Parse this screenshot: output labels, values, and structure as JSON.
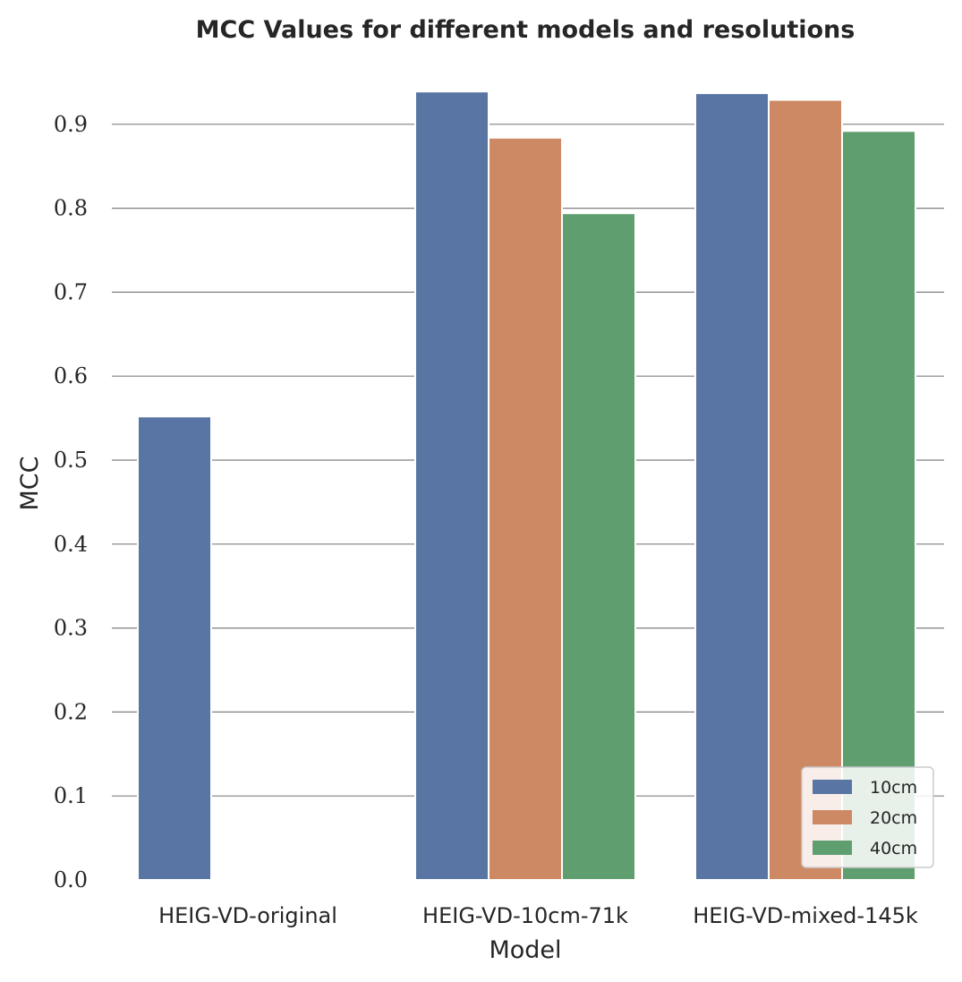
{
  "chart_data": {
    "type": "bar",
    "title": "MCC Values for different models and resolutions",
    "xlabel": "Model",
    "ylabel": "MCC",
    "categories": [
      "HEIG-VD-original",
      "HEIG-VD-10cm-71k",
      "HEIG-VD-mixed-145k"
    ],
    "series": [
      {
        "name": "10cm",
        "color": "#5975a4",
        "values": [
          0.552,
          0.939,
          0.937
        ]
      },
      {
        "name": "20cm",
        "color": "#cc8963",
        "values": [
          null,
          0.884,
          0.929
        ]
      },
      {
        "name": "40cm",
        "color": "#5f9e6e",
        "values": [
          null,
          0.794,
          0.892
        ]
      }
    ],
    "ylim": [
      0,
      0.95
    ],
    "yticks": [
      "0.0",
      "0.1",
      "0.2",
      "0.3",
      "0.4",
      "0.5",
      "0.6",
      "0.7",
      "0.8",
      "0.9"
    ],
    "grid": true,
    "legend_position": "lower-right"
  }
}
